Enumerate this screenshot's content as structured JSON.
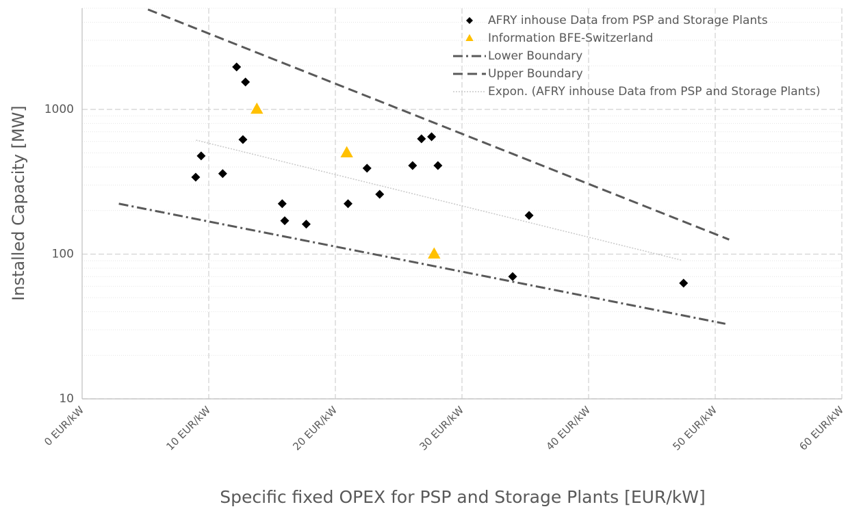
{
  "chart_data": {
    "type": "scatter",
    "xlabel": "Specific fixed OPEX for PSP and Storage Plants [EUR/kW]",
    "ylabel": "Installed Capacity [MW]",
    "xlim": [
      0,
      60
    ],
    "xticks": [
      {
        "value": 0,
        "label": "0 EUR/kW"
      },
      {
        "value": 10,
        "label": "10 EUR/kW"
      },
      {
        "value": 20,
        "label": "20 EUR/kW"
      },
      {
        "value": 30,
        "label": "30 EUR/kW"
      },
      {
        "value": 40,
        "label": "40 EUR/kW"
      },
      {
        "value": 50,
        "label": "50 EUR/kW"
      },
      {
        "value": 60,
        "label": "60 EUR/kW"
      }
    ],
    "ylim": [
      10,
      5000
    ],
    "yscale": "log",
    "yticks": [
      10,
      100,
      1000
    ],
    "yminor_ticks": [
      20,
      30,
      40,
      50,
      60,
      70,
      80,
      90,
      200,
      300,
      400,
      500,
      600,
      700,
      800,
      900,
      2000,
      3000,
      4000,
      5000
    ],
    "grid": true,
    "legend": "top-right",
    "series": [
      {
        "name": "AFRY inhouse Data from PSP and Storage Plants",
        "kind": "points",
        "marker": "diamond",
        "color": "#000000",
        "x": [
          8.97,
          9.4,
          11.1,
          12.2,
          12.7,
          12.9,
          15.8,
          16.0,
          17.7,
          21.0,
          22.5,
          23.5,
          26.1,
          26.8,
          27.6,
          28.1,
          35.3,
          34.0,
          47.5
        ],
        "values": [
          340,
          477,
          360,
          1963,
          619,
          1546,
          223,
          170,
          161,
          223,
          392,
          259,
          409,
          626,
          647,
          409,
          185,
          70,
          63
        ]
      },
      {
        "name": "Information BFE-Switzerland",
        "kind": "points",
        "marker": "triangle",
        "color": "#ffc000",
        "x": [
          13.8,
          20.9,
          27.8
        ],
        "values": [
          1000,
          500,
          100
        ]
      },
      {
        "name": "Lower Boundary",
        "kind": "line",
        "dash": "dashdot",
        "color": "#595959",
        "x": [
          2.9,
          50.8
        ],
        "values": [
          223,
          33
        ]
      },
      {
        "name": "Upper Boundary",
        "kind": "line",
        "dash": "dash",
        "color": "#595959",
        "x": [
          5.2,
          51.1
        ],
        "values": [
          4900,
          126
        ]
      },
      {
        "name": "Expon. (AFRY inhouse Data from PSP and Storage Plants)",
        "kind": "line",
        "dash": "dot",
        "color": "#c8c8c8",
        "x": [
          9.0,
          47.3
        ],
        "values": [
          613,
          91
        ]
      }
    ]
  }
}
